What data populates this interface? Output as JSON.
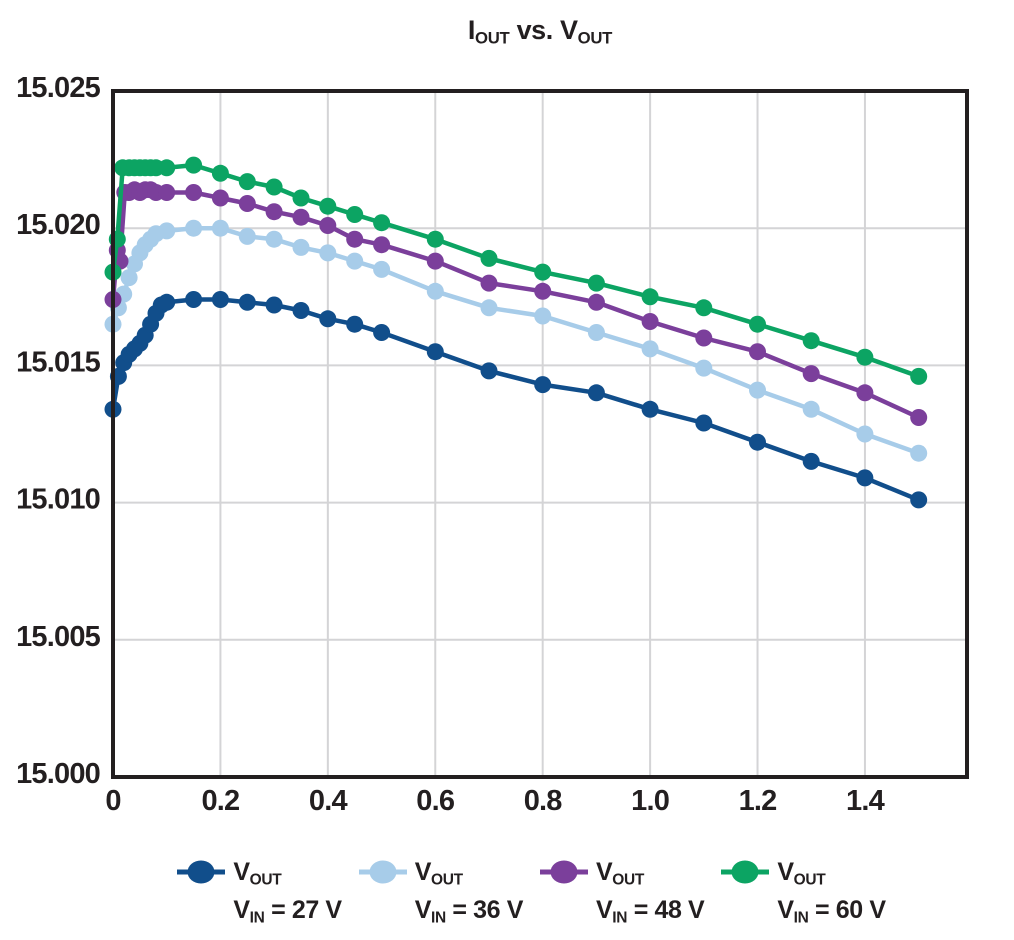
{
  "title": {
    "part1": "I",
    "sub1": "OUT",
    "part2": " vs. V",
    "sub2": "OUT"
  },
  "colors": {
    "text": "#231f20",
    "frame": "#231f20",
    "grid": "#d4d4d6",
    "background": "#ffffff",
    "series_27v": "#114e8b",
    "series_36v": "#a7cce9",
    "series_48v": "#7b3f9b",
    "series_60v": "#0ca463"
  },
  "legend": {
    "entries": [
      {
        "marker": "circle-line",
        "line1_main": "V",
        "line1_sub": "OUT",
        "line2_main": "V",
        "line2_sub": "IN",
        "line2_rest": " = 27 V"
      },
      {
        "marker": "circle-line",
        "line1_main": "V",
        "line1_sub": "OUT",
        "line2_main": "V",
        "line2_sub": "IN",
        "line2_rest": " = 36 V"
      },
      {
        "marker": "circle-line",
        "line1_main": "V",
        "line1_sub": "OUT",
        "line2_main": "V",
        "line2_sub": "IN",
        "line2_rest": " = 48 V"
      },
      {
        "marker": "circle-line",
        "line1_main": "V",
        "line1_sub": "OUT",
        "line2_main": "V",
        "line2_sub": "IN",
        "line2_rest": " = 60 V"
      }
    ]
  },
  "chart_data": {
    "type": "line",
    "title": "IOUT vs. VOUT",
    "xlabel": "",
    "ylabel": "",
    "xlim": [
      0,
      1.59
    ],
    "ylim": [
      15.0,
      15.025
    ],
    "grid": true,
    "grid_color": "#d4d4d6",
    "frame_color": "#231f20",
    "legend_position": "bottom",
    "marker_radius": 8.5,
    "line_width": 4.5,
    "xticks": {
      "values": [
        0,
        0.2,
        0.4,
        0.6,
        0.8,
        1.0,
        1.2,
        1.4
      ],
      "labels": [
        "0",
        "0.2",
        "0.4",
        "0.6",
        "0.8",
        "1.0",
        "1.2",
        "1.4"
      ]
    },
    "yticks": {
      "values": [
        15.025,
        15.02,
        15.015,
        15.01,
        15.005,
        15.0
      ],
      "labels": [
        "15.025",
        "15.020",
        "15.015",
        "15.010",
        "15.005",
        "15.000"
      ]
    },
    "series": [
      {
        "name": "VOUT, VIN = 27 V",
        "color": "#114e8b",
        "x": [
          0,
          0.01,
          0.02,
          0.03,
          0.04,
          0.05,
          0.06,
          0.07,
          0.08,
          0.09,
          0.1,
          0.15,
          0.2,
          0.25,
          0.3,
          0.35,
          0.4,
          0.45,
          0.5,
          0.6,
          0.7,
          0.8,
          0.9,
          1.0,
          1.1,
          1.2,
          1.3,
          1.4,
          1.5
        ],
        "y": [
          15.0134,
          15.0146,
          15.0151,
          15.0154,
          15.0156,
          15.0158,
          15.0161,
          15.0165,
          15.0169,
          15.0172,
          15.0173,
          15.0174,
          15.0174,
          15.0173,
          15.0172,
          15.017,
          15.0167,
          15.0165,
          15.0162,
          15.0155,
          15.0148,
          15.0143,
          15.014,
          15.0134,
          15.0129,
          15.0122,
          15.0115,
          15.0109,
          15.0101
        ]
      },
      {
        "name": "VOUT, VIN = 36 V",
        "color": "#a7cce9",
        "x": [
          0,
          0.01,
          0.02,
          0.03,
          0.04,
          0.05,
          0.06,
          0.07,
          0.08,
          0.1,
          0.15,
          0.2,
          0.25,
          0.3,
          0.35,
          0.4,
          0.45,
          0.5,
          0.6,
          0.7,
          0.8,
          0.9,
          1.0,
          1.1,
          1.2,
          1.3,
          1.4,
          1.5
        ],
        "y": [
          15.0165,
          15.0171,
          15.0176,
          15.0182,
          15.0187,
          15.0191,
          15.0194,
          15.0196,
          15.0198,
          15.0199,
          15.02,
          15.02,
          15.0197,
          15.0196,
          15.0193,
          15.0191,
          15.0188,
          15.0185,
          15.0177,
          15.0171,
          15.0168,
          15.0162,
          15.0156,
          15.0149,
          15.0141,
          15.0134,
          15.0125,
          15.0118
        ]
      },
      {
        "name": "VOUT, VIN = 48 V",
        "color": "#7b3f9b",
        "x": [
          0,
          0.008,
          0.013,
          0.022,
          0.03,
          0.04,
          0.05,
          0.06,
          0.07,
          0.08,
          0.1,
          0.15,
          0.2,
          0.25,
          0.3,
          0.35,
          0.4,
          0.45,
          0.5,
          0.6,
          0.7,
          0.8,
          0.9,
          1.0,
          1.1,
          1.2,
          1.3,
          1.4,
          1.5
        ],
        "y": [
          15.0174,
          15.0192,
          15.0188,
          15.0213,
          15.0213,
          15.0214,
          15.0213,
          15.0214,
          15.0214,
          15.0213,
          15.0213,
          15.0213,
          15.0211,
          15.0209,
          15.0206,
          15.0204,
          15.0201,
          15.0196,
          15.0194,
          15.0188,
          15.018,
          15.0177,
          15.0173,
          15.0166,
          15.016,
          15.0155,
          15.0147,
          15.014,
          15.0131
        ]
      },
      {
        "name": "VOUT, VIN = 60 V",
        "color": "#0ca463",
        "x": [
          0,
          0.008,
          0.018,
          0.03,
          0.04,
          0.05,
          0.06,
          0.07,
          0.08,
          0.1,
          0.15,
          0.2,
          0.25,
          0.3,
          0.35,
          0.4,
          0.45,
          0.5,
          0.6,
          0.7,
          0.8,
          0.9,
          1.0,
          1.1,
          1.2,
          1.3,
          1.4,
          1.5
        ],
        "y": [
          15.0184,
          15.0196,
          15.0222,
          15.0222,
          15.0222,
          15.0222,
          15.0222,
          15.0222,
          15.0222,
          15.0222,
          15.0223,
          15.022,
          15.0217,
          15.0215,
          15.0211,
          15.0208,
          15.0205,
          15.0202,
          15.0196,
          15.0189,
          15.0184,
          15.018,
          15.0175,
          15.0171,
          15.0165,
          15.0159,
          15.0153,
          15.0146
        ]
      }
    ]
  }
}
